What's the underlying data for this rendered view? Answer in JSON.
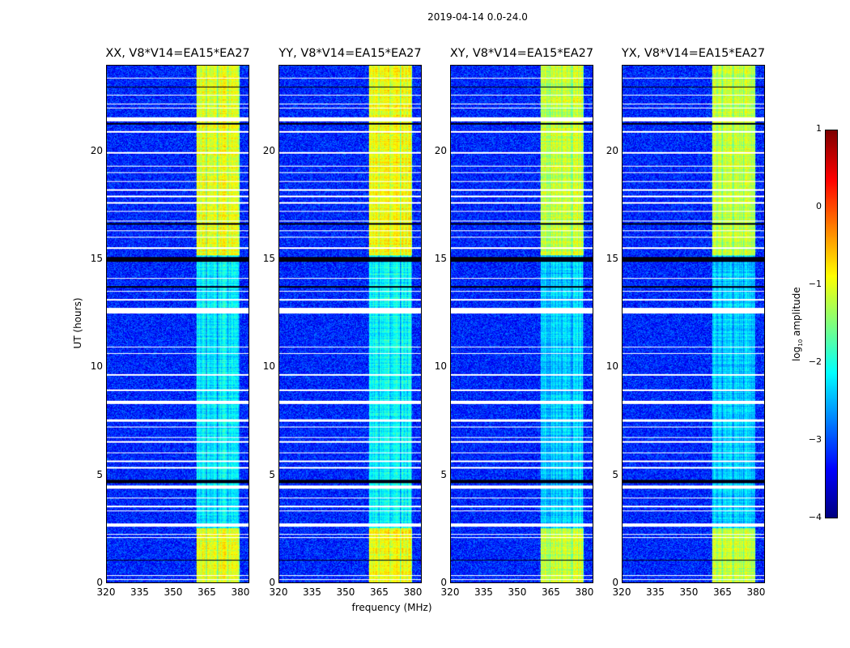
{
  "chart_data": {
    "type": "heatmap",
    "title": "2019-04-14 0.0-24.0",
    "xlabel": "frequency (MHz)",
    "ylabel": "UT (hours)",
    "xlim": [
      320,
      384
    ],
    "ylim": [
      0,
      24
    ],
    "xticks": [
      320,
      335,
      350,
      365,
      380
    ],
    "yticks": [
      0,
      5,
      10,
      15,
      20
    ],
    "panels": [
      {
        "title": "XX, V8*V14=EA15*EA27",
        "strength": 1.0
      },
      {
        "title": "YY, V8*V14=EA15*EA27",
        "strength": 1.1
      },
      {
        "title": "XY, V8*V14=EA15*EA27",
        "strength": 0.8
      },
      {
        "title": "YX, V8*V14=EA15*EA27",
        "strength": 0.8
      }
    ],
    "rfi_band_mhz": [
      360.5,
      380
    ],
    "strong_rfi_hours": [
      [
        0,
        2.5
      ],
      [
        15.2,
        24
      ]
    ],
    "background_log10": -3.2,
    "flagged_hours_white": [
      [
        0.1,
        0.15
      ],
      [
        0.3,
        0.35
      ],
      [
        2.05,
        2.1
      ],
      [
        2.2,
        2.25
      ],
      [
        2.6,
        2.72
      ],
      [
        3.3,
        3.35
      ],
      [
        3.5,
        3.55
      ],
      [
        3.9,
        3.95
      ],
      [
        4.35,
        4.5
      ],
      [
        5.3,
        5.35
      ],
      [
        5.6,
        5.65
      ],
      [
        6.0,
        6.05
      ],
      [
        6.5,
        6.55
      ],
      [
        6.7,
        6.75
      ],
      [
        7.2,
        7.25
      ],
      [
        7.45,
        7.58
      ],
      [
        8.3,
        8.45
      ],
      [
        8.9,
        8.95
      ],
      [
        9.6,
        9.68
      ],
      [
        10.6,
        10.65
      ],
      [
        10.9,
        10.95
      ],
      [
        12.5,
        12.75
      ],
      [
        13.1,
        13.15
      ],
      [
        13.5,
        13.55
      ],
      [
        14.1,
        14.15
      ],
      [
        15.5,
        15.55
      ],
      [
        16.0,
        16.05
      ],
      [
        16.3,
        16.35
      ],
      [
        16.75,
        16.8
      ],
      [
        17.2,
        17.25
      ],
      [
        17.6,
        17.65
      ],
      [
        17.9,
        17.95
      ],
      [
        18.2,
        18.25
      ],
      [
        18.6,
        18.65
      ],
      [
        19.0,
        19.05
      ],
      [
        19.3,
        19.35
      ],
      [
        19.9,
        20.0
      ],
      [
        20.9,
        20.95
      ],
      [
        21.4,
        21.6
      ],
      [
        22.0,
        22.05
      ],
      [
        22.2,
        22.25
      ],
      [
        22.6,
        22.65
      ],
      [
        23.4,
        23.45
      ]
    ],
    "flagged_hours_black": [
      [
        1.0,
        1.05
      ],
      [
        4.6,
        4.78
      ],
      [
        13.7,
        13.75
      ],
      [
        14.9,
        15.1
      ],
      [
        16.6,
        16.68
      ],
      [
        21.25,
        21.32
      ],
      [
        23.0,
        23.04
      ]
    ],
    "colorbar": {
      "label": "log10 amplitude",
      "label_base": "log",
      "label_sub": "10",
      "label_rest": " amplitude",
      "ticks": [
        "1",
        "0",
        "−1",
        "−2",
        "−3",
        "−4"
      ],
      "range": [
        -4,
        1
      ],
      "colormap": "jet"
    },
    "ytick_labels": [
      "0",
      "5",
      "10",
      "15",
      "20"
    ],
    "xtick_labels": [
      "320",
      "335",
      "350",
      "365",
      "380"
    ]
  }
}
